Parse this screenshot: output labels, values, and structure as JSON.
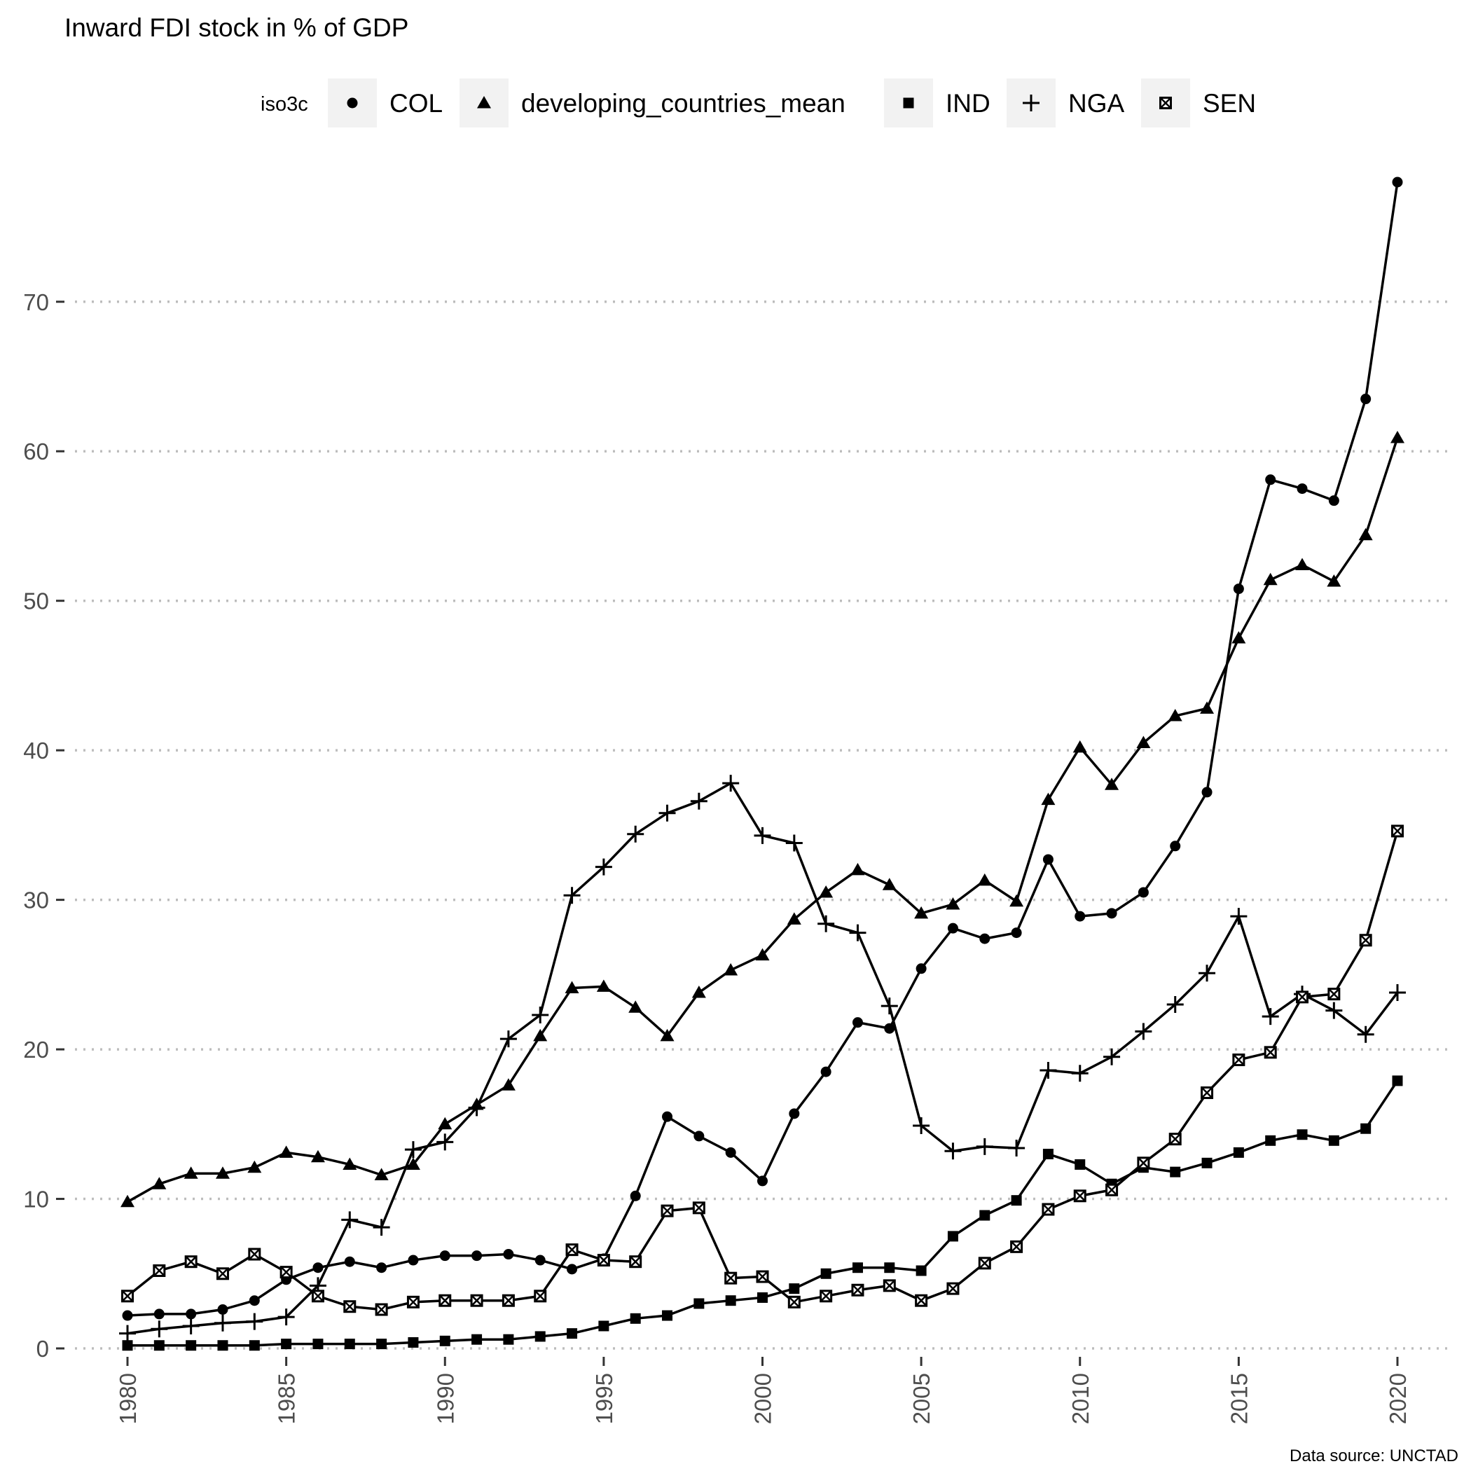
{
  "chart_data": {
    "type": "line",
    "title": "Inward FDI stock in % of GDP",
    "caption": "Data source: UNCTAD",
    "legend_title": "iso3c",
    "legend_position": "top",
    "grid": "horizontal dotted major gridlines",
    "xlabel": "",
    "ylabel": "",
    "xlim": [
      1980,
      2020
    ],
    "ylim": [
      0,
      78
    ],
    "x_ticks": [
      1980,
      1985,
      1990,
      1995,
      2000,
      2005,
      2010,
      2015,
      2020
    ],
    "y_ticks": [
      0,
      10,
      20,
      30,
      40,
      50,
      60,
      70
    ],
    "x": [
      1980,
      1981,
      1982,
      1983,
      1984,
      1985,
      1986,
      1987,
      1988,
      1989,
      1990,
      1991,
      1992,
      1993,
      1994,
      1995,
      1996,
      1997,
      1998,
      1999,
      2000,
      2001,
      2002,
      2003,
      2004,
      2005,
      2006,
      2007,
      2008,
      2009,
      2010,
      2011,
      2012,
      2013,
      2014,
      2015,
      2016,
      2017,
      2018,
      2019,
      2020
    ],
    "series": [
      {
        "name": "COL",
        "marker": "circle",
        "values": [
          2.2,
          2.3,
          2.3,
          2.6,
          3.2,
          4.6,
          5.4,
          5.8,
          5.4,
          5.9,
          6.2,
          6.2,
          6.3,
          5.9,
          5.3,
          6.0,
          10.2,
          15.5,
          14.2,
          13.1,
          11.2,
          15.7,
          18.5,
          21.8,
          21.4,
          25.4,
          28.1,
          27.4,
          27.8,
          32.7,
          28.9,
          29.1,
          30.5,
          33.6,
          37.2,
          50.8,
          58.1,
          57.5,
          56.7,
          63.5,
          78.0
        ]
      },
      {
        "name": "developing_countries_mean",
        "marker": "triangle",
        "values": [
          9.8,
          11.0,
          11.7,
          11.7,
          12.1,
          13.1,
          12.8,
          12.3,
          11.6,
          12.3,
          15.0,
          16.3,
          17.6,
          20.9,
          24.1,
          24.2,
          22.8,
          20.9,
          23.8,
          25.3,
          26.3,
          28.7,
          30.5,
          32.0,
          31.0,
          29.1,
          29.7,
          31.3,
          29.9,
          36.7,
          40.2,
          37.7,
          40.5,
          42.3,
          42.8,
          47.5,
          51.4,
          52.4,
          51.3,
          54.4,
          60.9
        ]
      },
      {
        "name": "IND",
        "marker": "square",
        "values": [
          0.2,
          0.2,
          0.2,
          0.2,
          0.2,
          0.3,
          0.3,
          0.3,
          0.3,
          0.4,
          0.5,
          0.6,
          0.6,
          0.8,
          1.0,
          1.5,
          2.0,
          2.2,
          3.0,
          3.2,
          3.4,
          4.0,
          5.0,
          5.4,
          5.4,
          5.2,
          7.5,
          8.9,
          9.9,
          13.0,
          12.3,
          11.0,
          12.1,
          11.8,
          12.4,
          13.1,
          13.9,
          14.3,
          13.9,
          14.7,
          17.9
        ]
      },
      {
        "name": "NGA",
        "marker": "plus",
        "values": [
          1.0,
          1.3,
          1.5,
          1.7,
          1.8,
          2.1,
          4.2,
          8.6,
          8.1,
          13.3,
          13.8,
          16.1,
          20.7,
          22.3,
          30.3,
          32.2,
          34.4,
          35.8,
          36.6,
          37.8,
          34.3,
          33.8,
          28.4,
          27.8,
          22.9,
          14.9,
          13.2,
          13.5,
          13.4,
          18.6,
          18.4,
          19.5,
          21.2,
          23.0,
          25.1,
          28.9,
          22.2,
          23.7,
          22.6,
          21.0,
          23.8
        ]
      },
      {
        "name": "SEN",
        "marker": "box-x",
        "values": [
          3.5,
          5.2,
          5.8,
          5.0,
          6.3,
          5.1,
          3.5,
          2.8,
          2.6,
          3.1,
          3.2,
          3.2,
          3.2,
          3.5,
          6.6,
          5.9,
          5.8,
          9.2,
          9.4,
          4.7,
          4.8,
          3.1,
          3.5,
          3.9,
          4.2,
          3.2,
          4.0,
          5.7,
          6.8,
          9.3,
          10.2,
          10.6,
          12.4,
          14.0,
          17.1,
          19.3,
          19.8,
          23.5,
          23.7,
          27.3,
          34.6
        ]
      }
    ]
  }
}
